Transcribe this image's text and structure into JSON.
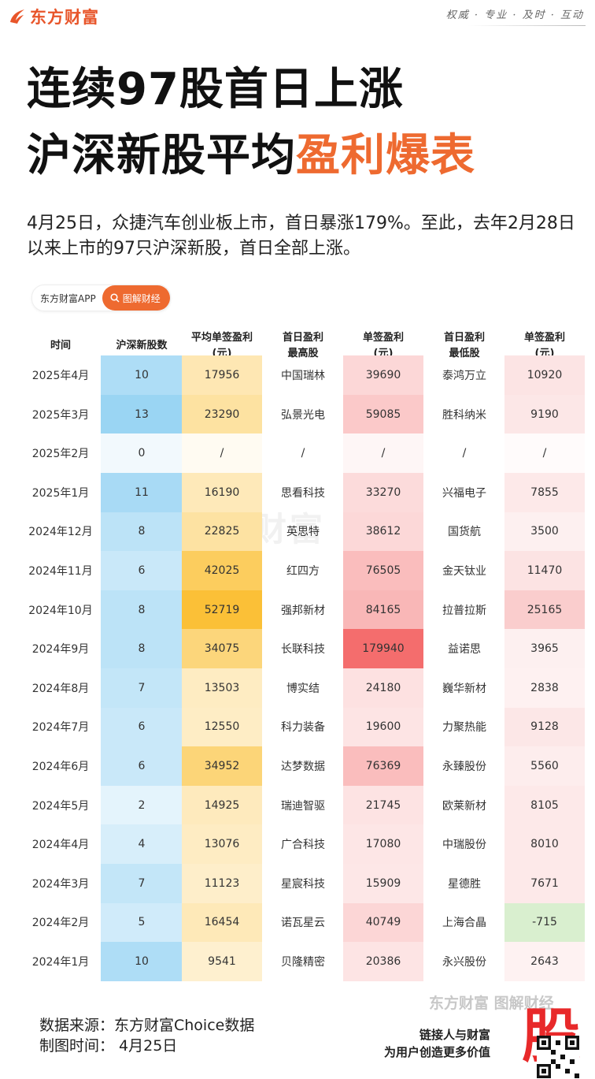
{
  "brand": {
    "name": "东方财富",
    "slogan": "权威 · 专业 · 及时 · 互动",
    "accent": "#ee6a30"
  },
  "title": {
    "line1": "连续97股首日上涨",
    "line2_prefix": "沪深新股平均",
    "line2_highlight": "盈利爆表"
  },
  "intro": "4月25日，众捷汽车创业板上市，首日暴涨179%。至此，去年2月28日以来上市的97只沪深新股，首日全部上涨。",
  "app_tag": {
    "name": "东方财富APP",
    "button_icon": "search-icon",
    "button_label": "图解财经"
  },
  "table": {
    "headers": [
      "时间",
      "沪深新股数",
      "平均单签盈利\n(元)",
      "首日盈利\n最高股",
      "单签盈利\n(元)",
      "首日盈利\n最低股",
      "单签盈利\n(元)"
    ],
    "rows": [
      [
        "2025年4月",
        "10",
        "17956",
        "中国瑞林",
        "39690",
        "泰鸿万立",
        "10920"
      ],
      [
        "2025年3月",
        "13",
        "23290",
        "弘景光电",
        "59085",
        "胜科纳米",
        "9190"
      ],
      [
        "2025年2月",
        "0",
        "/",
        "/",
        "/",
        "/",
        "/"
      ],
      [
        "2025年1月",
        "11",
        "16190",
        "思看科技",
        "33270",
        "兴福电子",
        "7855"
      ],
      [
        "2024年12月",
        "8",
        "22825",
        "英思特",
        "38612",
        "国货航",
        "3500"
      ],
      [
        "2024年11月",
        "6",
        "42025",
        "红四方",
        "76505",
        "金天钛业",
        "11470"
      ],
      [
        "2024年10月",
        "8",
        "52719",
        "强邦新材",
        "84165",
        "拉普拉斯",
        "25165"
      ],
      [
        "2024年9月",
        "8",
        "34075",
        "长联科技",
        "179940",
        "益诺思",
        "3965"
      ],
      [
        "2024年8月",
        "7",
        "13503",
        "博实结",
        "24180",
        "巍华新材",
        "2838"
      ],
      [
        "2024年7月",
        "6",
        "12550",
        "科力装备",
        "19600",
        "力聚热能",
        "9128"
      ],
      [
        "2024年6月",
        "6",
        "34952",
        "达梦数据",
        "76369",
        "永臻股份",
        "5560"
      ],
      [
        "2024年5月",
        "2",
        "14925",
        "瑞迪智驱",
        "21745",
        "欧莱新材",
        "8105"
      ],
      [
        "2024年4月",
        "4",
        "13076",
        "广合科技",
        "17080",
        "中瑞股份",
        "8010"
      ],
      [
        "2024年3月",
        "7",
        "11123",
        "星宸科技",
        "15909",
        "星德胜",
        "7671"
      ],
      [
        "2024年2月",
        "5",
        "16454",
        "诺瓦星云",
        "40749",
        "上海合晶",
        "-715"
      ],
      [
        "2024年1月",
        "10",
        "9541",
        "贝隆精密",
        "20386",
        "永兴股份",
        "2643"
      ]
    ],
    "colors": {
      "count": "#8fd0f2",
      "avg": "#fbbd2c",
      "max": "#f36565",
      "min": "#f7b4b4",
      "negative": "#d9efcf"
    }
  },
  "footer": {
    "source": "数据来源：东方财富Choice数据",
    "date": "制图时间：  4月25日",
    "watermark": "东方财富 图解财经",
    "slogan_line1": "链接人与财富",
    "slogan_line2": "为用户创造更多价值",
    "stamp": "股"
  }
}
